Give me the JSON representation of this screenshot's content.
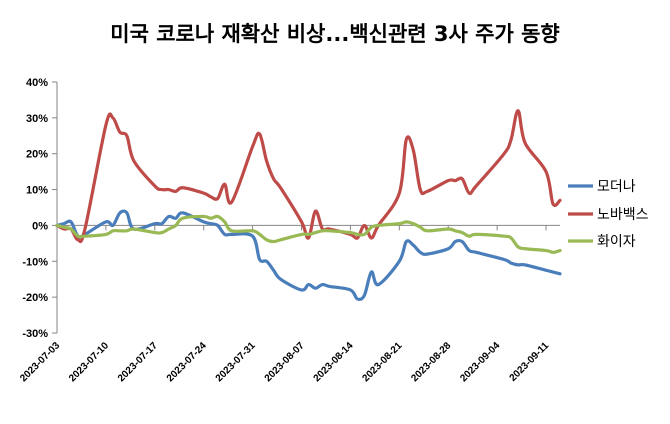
{
  "chart_data": {
    "type": "line",
    "title": "미국 코로나 재확산 비상...백신관련 3사 주가 동향",
    "xlabel": "",
    "ylabel": "",
    "ylim": [
      -30,
      40
    ],
    "yticks": [
      40,
      30,
      20,
      10,
      0,
      -10,
      -20,
      -30
    ],
    "ytick_labels": [
      "40%",
      "30%",
      "20%",
      "10%",
      "0%",
      "-10%",
      "-20%",
      "-30%"
    ],
    "x_start": "2023-07-03",
    "x_end": "2023-09-13",
    "xticks": [
      "2023-07-03",
      "2023-07-10",
      "2023-07-17",
      "2023-07-24",
      "2023-07-31",
      "2023-08-07",
      "2023-08-14",
      "2023-08-21",
      "2023-08-28",
      "2023-09-04",
      "2023-09-11"
    ],
    "grid": false,
    "legend": "right",
    "series": [
      {
        "name": "모더나",
        "color": "#4a7ebb",
        "points": [
          [
            "2023-07-03",
            0
          ],
          [
            "2023-07-04",
            0.5
          ],
          [
            "2023-07-05",
            1
          ],
          [
            "2023-07-06",
            -3
          ],
          [
            "2023-07-07",
            -2.5
          ],
          [
            "2023-07-10",
            1
          ],
          [
            "2023-07-11",
            0
          ],
          [
            "2023-07-12",
            3.5
          ],
          [
            "2023-07-13",
            3.5
          ],
          [
            "2023-07-14",
            -1
          ],
          [
            "2023-07-17",
            0.5
          ],
          [
            "2023-07-18",
            0.5
          ],
          [
            "2023-07-19",
            2.5
          ],
          [
            "2023-07-20",
            2
          ],
          [
            "2023-07-21",
            3.5
          ],
          [
            "2023-07-24",
            1
          ],
          [
            "2023-07-25",
            0.5
          ],
          [
            "2023-07-26",
            0
          ],
          [
            "2023-07-27",
            -2.5
          ],
          [
            "2023-07-28",
            -2.5
          ],
          [
            "2023-07-31",
            -3
          ],
          [
            "2023-08-01",
            -9.5
          ],
          [
            "2023-08-02",
            -10
          ],
          [
            "2023-08-03",
            -12.5
          ],
          [
            "2023-08-04",
            -15
          ],
          [
            "2023-08-07",
            -18
          ],
          [
            "2023-08-08",
            -16.5
          ],
          [
            "2023-08-09",
            -17.5
          ],
          [
            "2023-08-10",
            -16.5
          ],
          [
            "2023-08-11",
            -17
          ],
          [
            "2023-08-14",
            -18
          ],
          [
            "2023-08-15",
            -20.5
          ],
          [
            "2023-08-16",
            -19.5
          ],
          [
            "2023-08-17",
            -13
          ],
          [
            "2023-08-18",
            -16.5
          ],
          [
            "2023-08-21",
            -10
          ],
          [
            "2023-08-22",
            -4.5
          ],
          [
            "2023-08-23",
            -5.5
          ],
          [
            "2023-08-24",
            -7.5
          ],
          [
            "2023-08-25",
            -8
          ],
          [
            "2023-08-28",
            -6.5
          ],
          [
            "2023-08-29",
            -4.5
          ],
          [
            "2023-08-30",
            -4.5
          ],
          [
            "2023-08-31",
            -7
          ],
          [
            "2023-09-01",
            -7.5
          ],
          [
            "2023-09-05",
            -9.5
          ],
          [
            "2023-09-06",
            -10.5
          ],
          [
            "2023-09-07",
            -11
          ],
          [
            "2023-09-08",
            -11
          ],
          [
            "2023-09-11",
            -12.5
          ],
          [
            "2023-09-12",
            -13
          ],
          [
            "2023-09-13",
            -13.5
          ]
        ]
      },
      {
        "name": "노바백스",
        "color": "#be4b48",
        "points": [
          [
            "2023-07-03",
            0
          ],
          [
            "2023-07-04",
            -1
          ],
          [
            "2023-07-05",
            -1
          ],
          [
            "2023-07-06",
            -4
          ],
          [
            "2023-07-07",
            -1
          ],
          [
            "2023-07-10",
            28
          ],
          [
            "2023-07-11",
            30
          ],
          [
            "2023-07-12",
            26
          ],
          [
            "2023-07-13",
            25
          ],
          [
            "2023-07-14",
            18
          ],
          [
            "2023-07-17",
            11
          ],
          [
            "2023-07-18",
            10
          ],
          [
            "2023-07-19",
            10
          ],
          [
            "2023-07-20",
            9.5
          ],
          [
            "2023-07-21",
            10.5
          ],
          [
            "2023-07-24",
            9
          ],
          [
            "2023-07-25",
            8
          ],
          [
            "2023-07-26",
            7.5
          ],
          [
            "2023-07-27",
            11.5
          ],
          [
            "2023-07-28",
            6.5
          ],
          [
            "2023-07-31",
            22
          ],
          [
            "2023-08-01",
            25.5
          ],
          [
            "2023-08-02",
            18
          ],
          [
            "2023-08-03",
            13
          ],
          [
            "2023-08-04",
            10.5
          ],
          [
            "2023-08-07",
            1
          ],
          [
            "2023-08-08",
            -3.5
          ],
          [
            "2023-08-09",
            4
          ],
          [
            "2023-08-10",
            -1
          ],
          [
            "2023-08-11",
            -1
          ],
          [
            "2023-08-14",
            -2.5
          ],
          [
            "2023-08-15",
            -3.5
          ],
          [
            "2023-08-16",
            0
          ],
          [
            "2023-08-17",
            -3.5
          ],
          [
            "2023-08-18",
            0
          ],
          [
            "2023-08-21",
            9
          ],
          [
            "2023-08-22",
            24
          ],
          [
            "2023-08-23",
            21
          ],
          [
            "2023-08-24",
            10
          ],
          [
            "2023-08-25",
            9.5
          ],
          [
            "2023-08-28",
            12.5
          ],
          [
            "2023-08-29",
            12.5
          ],
          [
            "2023-08-30",
            13
          ],
          [
            "2023-08-31",
            9
          ],
          [
            "2023-09-01",
            11
          ],
          [
            "2023-09-05",
            20
          ],
          [
            "2023-09-06",
            24
          ],
          [
            "2023-09-07",
            32
          ],
          [
            "2023-09-08",
            23
          ],
          [
            "2023-09-11",
            15
          ],
          [
            "2023-09-12",
            6
          ],
          [
            "2023-09-13",
            7
          ]
        ]
      },
      {
        "name": "화이자",
        "color": "#98b954",
        "points": [
          [
            "2023-07-03",
            0
          ],
          [
            "2023-07-04",
            -0.5
          ],
          [
            "2023-07-05",
            -1
          ],
          [
            "2023-07-06",
            -3
          ],
          [
            "2023-07-07",
            -3
          ],
          [
            "2023-07-10",
            -2.5
          ],
          [
            "2023-07-11",
            -1.5
          ],
          [
            "2023-07-12",
            -1.5
          ],
          [
            "2023-07-13",
            -1.5
          ],
          [
            "2023-07-14",
            -1
          ],
          [
            "2023-07-17",
            -2
          ],
          [
            "2023-07-18",
            -2
          ],
          [
            "2023-07-19",
            -1
          ],
          [
            "2023-07-20",
            0
          ],
          [
            "2023-07-21",
            2
          ],
          [
            "2023-07-24",
            2.5
          ],
          [
            "2023-07-25",
            2
          ],
          [
            "2023-07-26",
            2.5
          ],
          [
            "2023-07-27",
            1
          ],
          [
            "2023-07-28",
            -1.5
          ],
          [
            "2023-07-31",
            -1.5
          ],
          [
            "2023-08-01",
            -2.5
          ],
          [
            "2023-08-02",
            -4
          ],
          [
            "2023-08-03",
            -4.5
          ],
          [
            "2023-08-04",
            -4
          ],
          [
            "2023-08-07",
            -2.5
          ],
          [
            "2023-08-08",
            -2.5
          ],
          [
            "2023-08-09",
            -2
          ],
          [
            "2023-08-10",
            -1.5
          ],
          [
            "2023-08-11",
            -1.5
          ],
          [
            "2023-08-14",
            -2
          ],
          [
            "2023-08-15",
            -2.5
          ],
          [
            "2023-08-16",
            -2.5
          ],
          [
            "2023-08-17",
            -0.5
          ],
          [
            "2023-08-18",
            0
          ],
          [
            "2023-08-21",
            0.5
          ],
          [
            "2023-08-22",
            1
          ],
          [
            "2023-08-23",
            0.5
          ],
          [
            "2023-08-24",
            -0.5
          ],
          [
            "2023-08-25",
            -1.5
          ],
          [
            "2023-08-28",
            -1
          ],
          [
            "2023-08-29",
            -1.5
          ],
          [
            "2023-08-30",
            -2
          ],
          [
            "2023-08-31",
            -3
          ],
          [
            "2023-09-01",
            -2.5
          ],
          [
            "2023-09-05",
            -3
          ],
          [
            "2023-09-06",
            -3.5
          ],
          [
            "2023-09-07",
            -6
          ],
          [
            "2023-09-08",
            -6.5
          ],
          [
            "2023-09-11",
            -7
          ],
          [
            "2023-09-12",
            -7.5
          ],
          [
            "2023-09-13",
            -7
          ]
        ]
      }
    ]
  }
}
